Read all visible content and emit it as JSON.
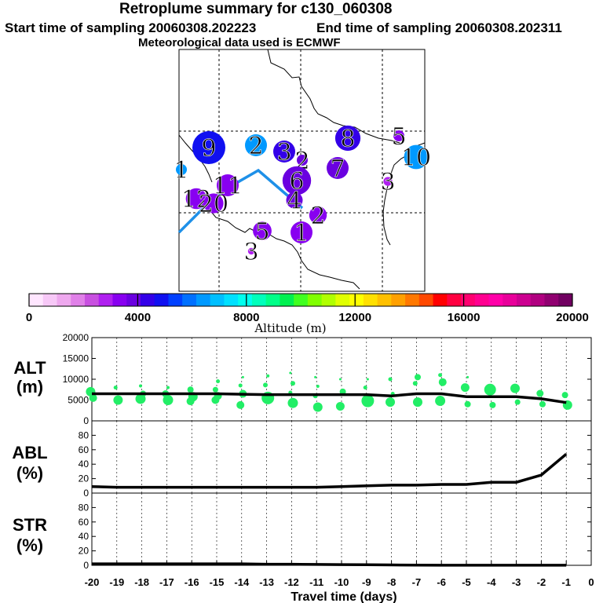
{
  "header": {
    "title": "Retroplume summary for c130_060308",
    "start_label": "Start time of sampling 20060308.202223",
    "end_label": "End time of sampling 20060308.202311",
    "met_label": "Meteorological data used is ECMWF"
  },
  "colorbar": {
    "label": "Altitude (m)",
    "ticks": [
      "0",
      "4000",
      "8000",
      "12000",
      "16000",
      "20000"
    ],
    "min": 0,
    "max": 20000,
    "colors": [
      "#ffe6ff",
      "#f7c8f7",
      "#eea8ee",
      "#e080e8",
      "#c850e0",
      "#b020f0",
      "#8800f0",
      "#6a00e0",
      "#3300e8",
      "#1010f0",
      "#0040ff",
      "#0070ff",
      "#0099ff",
      "#00bfff",
      "#00e0ff",
      "#00ffee",
      "#00ffbb",
      "#00ff88",
      "#00f050",
      "#40ff20",
      "#80ff00",
      "#b0ff00",
      "#e0ff00",
      "#ffff00",
      "#ffe000",
      "#ffc000",
      "#ffa000",
      "#ff7800",
      "#ff4800",
      "#ff0000",
      "#ff0040",
      "#ff0070",
      "#ff0090",
      "#ff00a8",
      "#e8009a",
      "#cc0090",
      "#b00080",
      "#900070",
      "#700060"
    ]
  },
  "map": {
    "labels": [
      {
        "text": "9",
        "color": "#1010f0",
        "r": 3.0
      },
      {
        "text": "2",
        "color": "#0099ff",
        "r": 2.0
      },
      {
        "text": "3",
        "color": "#3300e8",
        "r": 2.0
      },
      {
        "text": "2",
        "color": "#6a00e0",
        "r": 1.0
      },
      {
        "text": "8",
        "color": "#3300e8",
        "r": 2.3
      },
      {
        "text": "5",
        "color": "#8800f0",
        "r": 1.0
      },
      {
        "text": "10",
        "color": "#0099ff",
        "r": 2.2
      },
      {
        "text": "1",
        "color": "#0099ff",
        "r": 1.0
      },
      {
        "text": "7",
        "color": "#6a00e0",
        "r": 2.0
      },
      {
        "text": "6",
        "color": "#6a00e0",
        "r": 2.6
      },
      {
        "text": "3",
        "color": "#b020f0",
        "r": 0.8
      },
      {
        "text": "12",
        "color": "#8800f0",
        "r": 1.9
      },
      {
        "text": "20",
        "color": "#8800f0",
        "r": 1.8
      },
      {
        "text": "11",
        "color": "#8800f0",
        "r": 2.0
      },
      {
        "text": "4",
        "color": "#6a00e0",
        "r": 1.5
      },
      {
        "text": "2",
        "color": "#8800f0",
        "r": 1.6
      },
      {
        "text": "5",
        "color": "#8800f0",
        "r": 1.7
      },
      {
        "text": "1",
        "color": "#8800f0",
        "r": 2.0
      },
      {
        "text": "3",
        "color": "#b020f0",
        "r": 0.6
      }
    ]
  },
  "chart_data": [
    {
      "type": "scatter",
      "title": "ALT (m)",
      "label_line1": "ALT",
      "label_line2": "(m)",
      "ylim": [
        0,
        20000
      ],
      "yticks": [
        "0",
        "5000",
        "10000",
        "15000",
        "20000"
      ],
      "xlim": [
        -20,
        0
      ],
      "mean_line": {
        "x": [
          -20,
          -19,
          -18,
          -17,
          -16,
          -15,
          -14,
          -13,
          -12,
          -11,
          -10,
          -9,
          -8,
          -7,
          -6,
          -5,
          -4,
          -3,
          -2,
          -1
        ],
        "y": [
          6500,
          6500,
          6500,
          6500,
          6500,
          6500,
          6400,
          6300,
          6300,
          6300,
          6300,
          6300,
          6000,
          6500,
          6500,
          5800,
          5800,
          5800,
          5300,
          4400
        ]
      },
      "points": {
        "x": [
          -20,
          -20,
          -19,
          -19,
          -18,
          -18,
          -18,
          -17,
          -17,
          -17,
          -16,
          -16,
          -16,
          -15,
          -15,
          -15,
          -15,
          -14,
          -14,
          -14,
          -14,
          -13,
          -13,
          -13,
          -12,
          -12,
          -12,
          -12,
          -11,
          -11,
          -11,
          -11,
          -10,
          -10,
          -10,
          -9,
          -9,
          -9,
          -8,
          -8,
          -8,
          -7,
          -7,
          -7,
          -6,
          -6,
          -6,
          -5,
          -5,
          -5,
          -4,
          -4,
          -3,
          -3,
          -2,
          -2,
          -1,
          -1
        ],
        "y": [
          7000,
          5500,
          8000,
          5000,
          8400,
          6500,
          5300,
          8000,
          6500,
          5000,
          7500,
          5800,
          4700,
          9500,
          7500,
          6000,
          5000,
          10500,
          8500,
          6500,
          3800,
          10800,
          8600,
          5500,
          11500,
          9000,
          6800,
          4300,
          10500,
          8300,
          6000,
          3300,
          10000,
          7000,
          3500,
          10000,
          8000,
          4800,
          10000,
          6500,
          4500,
          10500,
          9000,
          4500,
          11000,
          9300,
          4800,
          10500,
          8000,
          4000,
          7500,
          3800,
          7800,
          4500,
          6600,
          4000,
          6200,
          3800
        ],
        "size": [
          1.2,
          1.0,
          0.5,
          1.2,
          0.4,
          0.8,
          1.3,
          0.4,
          0.9,
          1.3,
          0.8,
          1.2,
          1.0,
          0.5,
          0.7,
          1.0,
          1.0,
          0.3,
          0.5,
          1.0,
          1.0,
          0.4,
          0.6,
          1.6,
          0.3,
          0.6,
          0.5,
          1.3,
          0.3,
          0.4,
          0.6,
          1.2,
          0.3,
          0.8,
          1.1,
          0.3,
          0.5,
          1.6,
          0.5,
          0.5,
          1.2,
          0.8,
          0.6,
          1.2,
          0.5,
          1.0,
          1.3,
          0.3,
          1.1,
          0.8,
          1.5,
          0.8,
          1.2,
          0.7,
          0.9,
          0.8,
          0.8,
          1.2
        ]
      }
    },
    {
      "type": "line",
      "title": "ABL (%)",
      "label_line1": "ABL",
      "label_line2": "(%)",
      "ylim": [
        0,
        100
      ],
      "yticks": [
        "0",
        "20",
        "40",
        "60",
        "80"
      ],
      "xlim": [
        -20,
        0
      ],
      "x": [
        -20,
        -19,
        -18,
        -17,
        -16,
        -15,
        -14,
        -13,
        -12,
        -11,
        -10,
        -9,
        -8,
        -7,
        -6,
        -5,
        -4,
        -3,
        -2,
        -1
      ],
      "y": [
        9,
        8,
        8,
        8,
        8,
        8,
        8,
        8,
        8,
        8,
        9,
        10,
        11,
        11,
        12,
        12,
        15,
        15,
        25,
        54
      ]
    },
    {
      "type": "line",
      "title": "STR (%)",
      "label_line1": "STR",
      "label_line2": "(%)",
      "ylim": [
        0,
        100
      ],
      "yticks": [
        "0",
        "20",
        "40",
        "60",
        "80"
      ],
      "xlim": [
        -20,
        0
      ],
      "x": [
        -20,
        -19,
        -18,
        -17,
        -16,
        -15,
        -14,
        -13,
        -12,
        -11,
        -10,
        -9,
        -8,
        -7,
        -6,
        -5,
        -4,
        -3,
        -2,
        -1
      ],
      "y": [
        2,
        2,
        2,
        2,
        2,
        2,
        2,
        1.5,
        1.5,
        1.2,
        1,
        0.8,
        0.5,
        0.3,
        0.2,
        0.1,
        0.1,
        0.1,
        0.1,
        0.1
      ]
    }
  ],
  "xaxis": {
    "label": "Travel time (days)",
    "ticks": [
      "-20",
      "-19",
      "-18",
      "-17",
      "-16",
      "-15",
      "-14",
      "-13",
      "-12",
      "-11",
      "-10",
      "-9",
      "-8",
      "-7",
      "-6",
      "-5",
      "-4",
      "-3",
      "-2",
      "-1",
      "0"
    ]
  }
}
